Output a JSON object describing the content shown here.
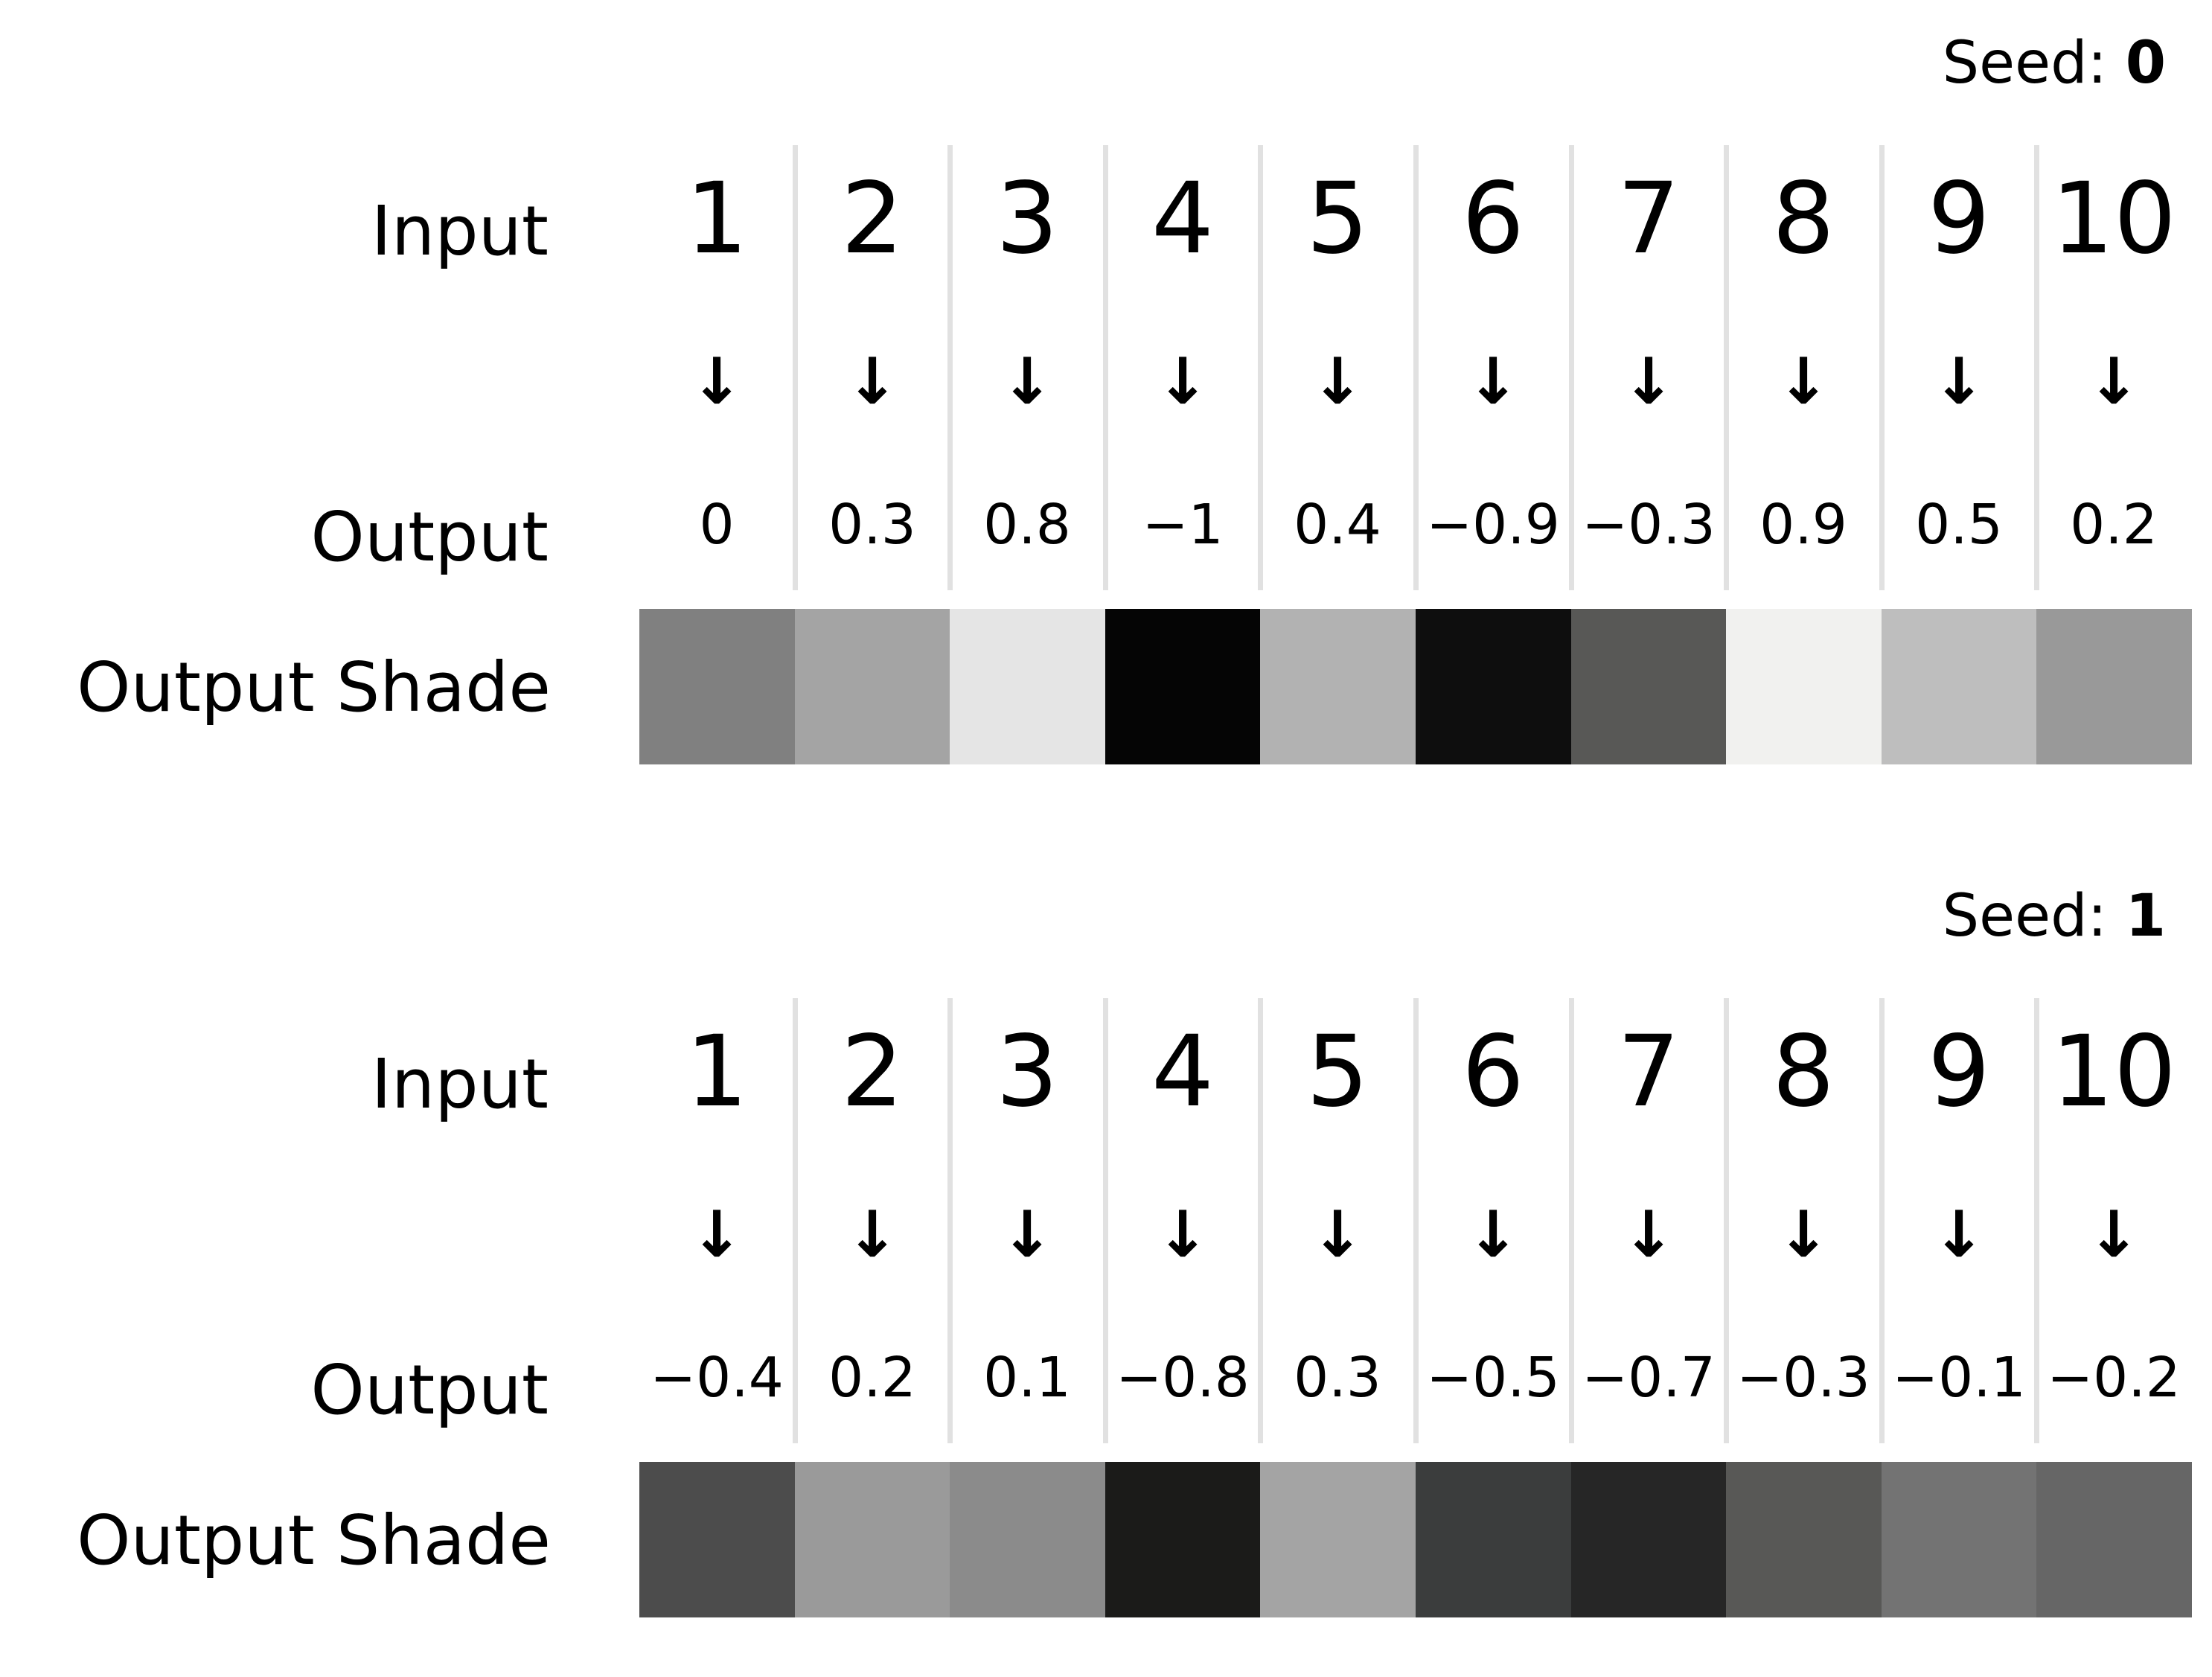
{
  "labels": {
    "seed_prefix": "Seed:",
    "input": "Input",
    "output": "Output",
    "output_shade": "Output Shade",
    "arrow": "↓"
  },
  "panels": [
    {
      "seed": "0",
      "inputs": [
        "1",
        "2",
        "3",
        "4",
        "5",
        "6",
        "7",
        "8",
        "9",
        "10"
      ],
      "outputs": [
        "0",
        "0.3",
        "0.8",
        "−1",
        "0.4",
        "−0.9",
        "−0.3",
        "0.9",
        "0.5",
        "0.2"
      ],
      "shades": [
        "#808080",
        "#a4a4a4",
        "#e5e5e5",
        "#050505",
        "#b2b2b2",
        "#0e0e0e",
        "#585856",
        "#f1f1ef",
        "#bebebe",
        "#999999"
      ]
    },
    {
      "seed": "1",
      "inputs": [
        "1",
        "2",
        "3",
        "4",
        "5",
        "6",
        "7",
        "8",
        "9",
        "10"
      ],
      "outputs": [
        "−0.4",
        "0.2",
        "0.1",
        "−0.8",
        "0.3",
        "−0.5",
        "−0.7",
        "−0.3",
        "−0.1",
        "−0.2"
      ],
      "shades": [
        "#4c4c4c",
        "#9a9a9a",
        "#8b8b8b",
        "#1b1b19",
        "#a4a4a4",
        "#3b3d3d",
        "#262626",
        "#585856",
        "#737373",
        "#666666"
      ]
    }
  ]
}
